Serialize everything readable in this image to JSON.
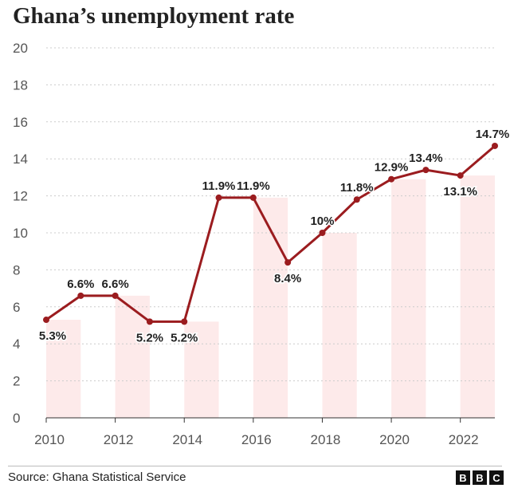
{
  "header": {
    "title": "Ghana’s unemployment rate"
  },
  "footer": {
    "source": "Source: Ghana Statistical Service",
    "logo": [
      "B",
      "B",
      "C"
    ]
  },
  "chart_data": {
    "type": "line",
    "title": "Ghana’s unemployment rate",
    "xlabel": "",
    "ylabel": "",
    "x": [
      2010,
      2011,
      2012,
      2013,
      2014,
      2015,
      2016,
      2017,
      2018,
      2019,
      2020,
      2021,
      2022,
      2023
    ],
    "values": [
      5.3,
      6.6,
      6.6,
      5.2,
      5.2,
      11.9,
      11.9,
      8.4,
      10,
      11.8,
      12.9,
      13.4,
      13.1,
      14.7
    ],
    "data_labels": [
      "5.3%",
      "6.6%",
      "6.6%",
      "5.2%",
      "5.2%",
      "11.9%",
      "11.9%",
      "8.4%",
      "10%",
      "11.8%",
      "12.9%",
      "13.4%",
      "13.1%",
      "14.7%"
    ],
    "label_position": [
      "below",
      "above",
      "above",
      "below",
      "below",
      "above",
      "above",
      "below",
      "above",
      "above",
      "above",
      "above",
      "below",
      "above"
    ],
    "x_ticks": [
      2010,
      2012,
      2014,
      2016,
      2018,
      2020,
      2022
    ],
    "y_ticks": [
      0,
      2,
      4,
      6,
      8,
      10,
      12,
      14,
      16,
      18,
      20
    ],
    "xlim": [
      2010,
      2023
    ],
    "ylim": [
      0,
      20
    ],
    "grid": "horizontal-dotted",
    "line_color": "#9b1c1f",
    "band_color": "#fdeaea"
  }
}
